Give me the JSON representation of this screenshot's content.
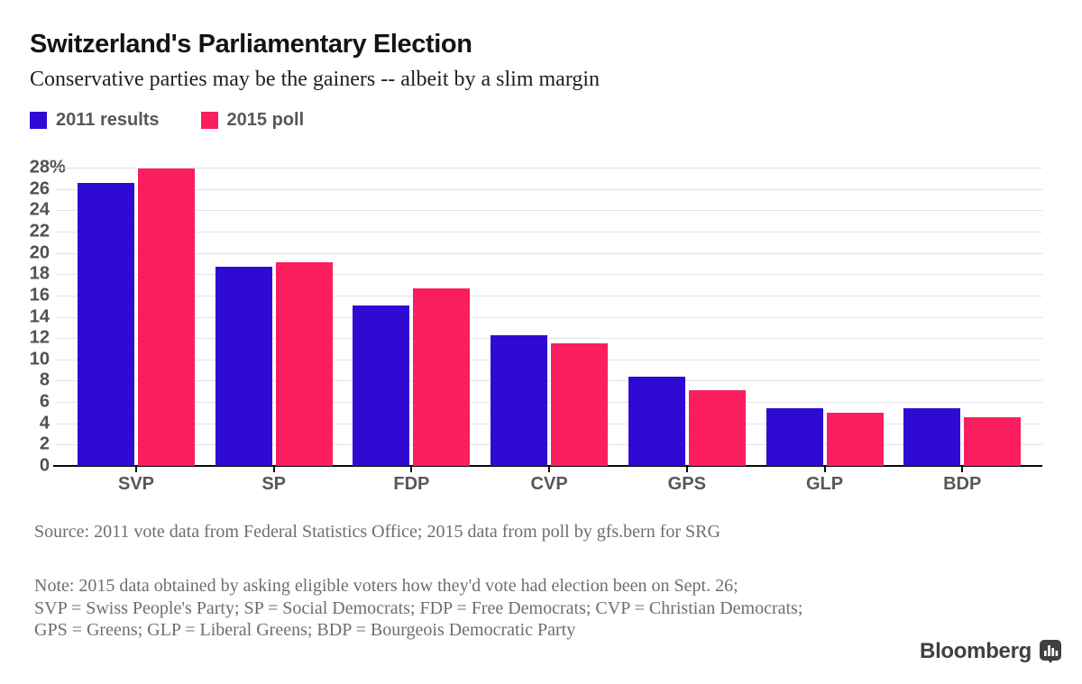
{
  "header": {
    "title": "Switzerland's Parliamentary Election",
    "subtitle": "Conservative parties may be the gainers -- albeit by a slim margin"
  },
  "legend": [
    {
      "label": "2011 results",
      "color": "#2e0ad2"
    },
    {
      "label": "2015 poll",
      "color": "#fa1e5e"
    }
  ],
  "chart_data": {
    "type": "bar",
    "categories": [
      "SVP",
      "SP",
      "FDP",
      "CVP",
      "GPS",
      "GLP",
      "BDP"
    ],
    "series": [
      {
        "name": "2011 results",
        "color": "#2e0ad2",
        "values": [
          26.6,
          18.7,
          15.1,
          12.3,
          8.4,
          5.4,
          5.4
        ]
      },
      {
        "name": "2015 poll",
        "color": "#fa1e5e",
        "values": [
          27.9,
          19.1,
          16.7,
          11.5,
          7.1,
          5.0,
          4.6
        ]
      }
    ],
    "ylim": [
      0,
      28
    ],
    "ytick_step": 2,
    "ytick_top_label": "28%",
    "grid": true,
    "legend_position": "top-left",
    "xlabel": "",
    "ylabel": ""
  },
  "footer": {
    "source": "Source: 2011 vote data from Federal Statistics Office; 2015 data from poll by gfs.bern for SRG",
    "note_lines": [
      "Note: 2015 data obtained by asking eligible voters how they'd vote had election been on Sept. 26;",
      "SVP = Swiss People's Party; SP = Social Democrats; FDP = Free Democrats; CVP = Christian Democrats;",
      "GPS = Greens; GLP = Liberal Greens; BDP = Bourgeois Democratic Party"
    ],
    "brand": "Bloomberg"
  },
  "colors": {
    "series_2011": "#2e0ad2",
    "series_2015": "#fa1e5e",
    "gridline": "#e3e3e8",
    "axis": "#0a0a0a",
    "tick_label": "#515155",
    "footer_text": "#6e6e6e",
    "brand_text": "#404043"
  }
}
